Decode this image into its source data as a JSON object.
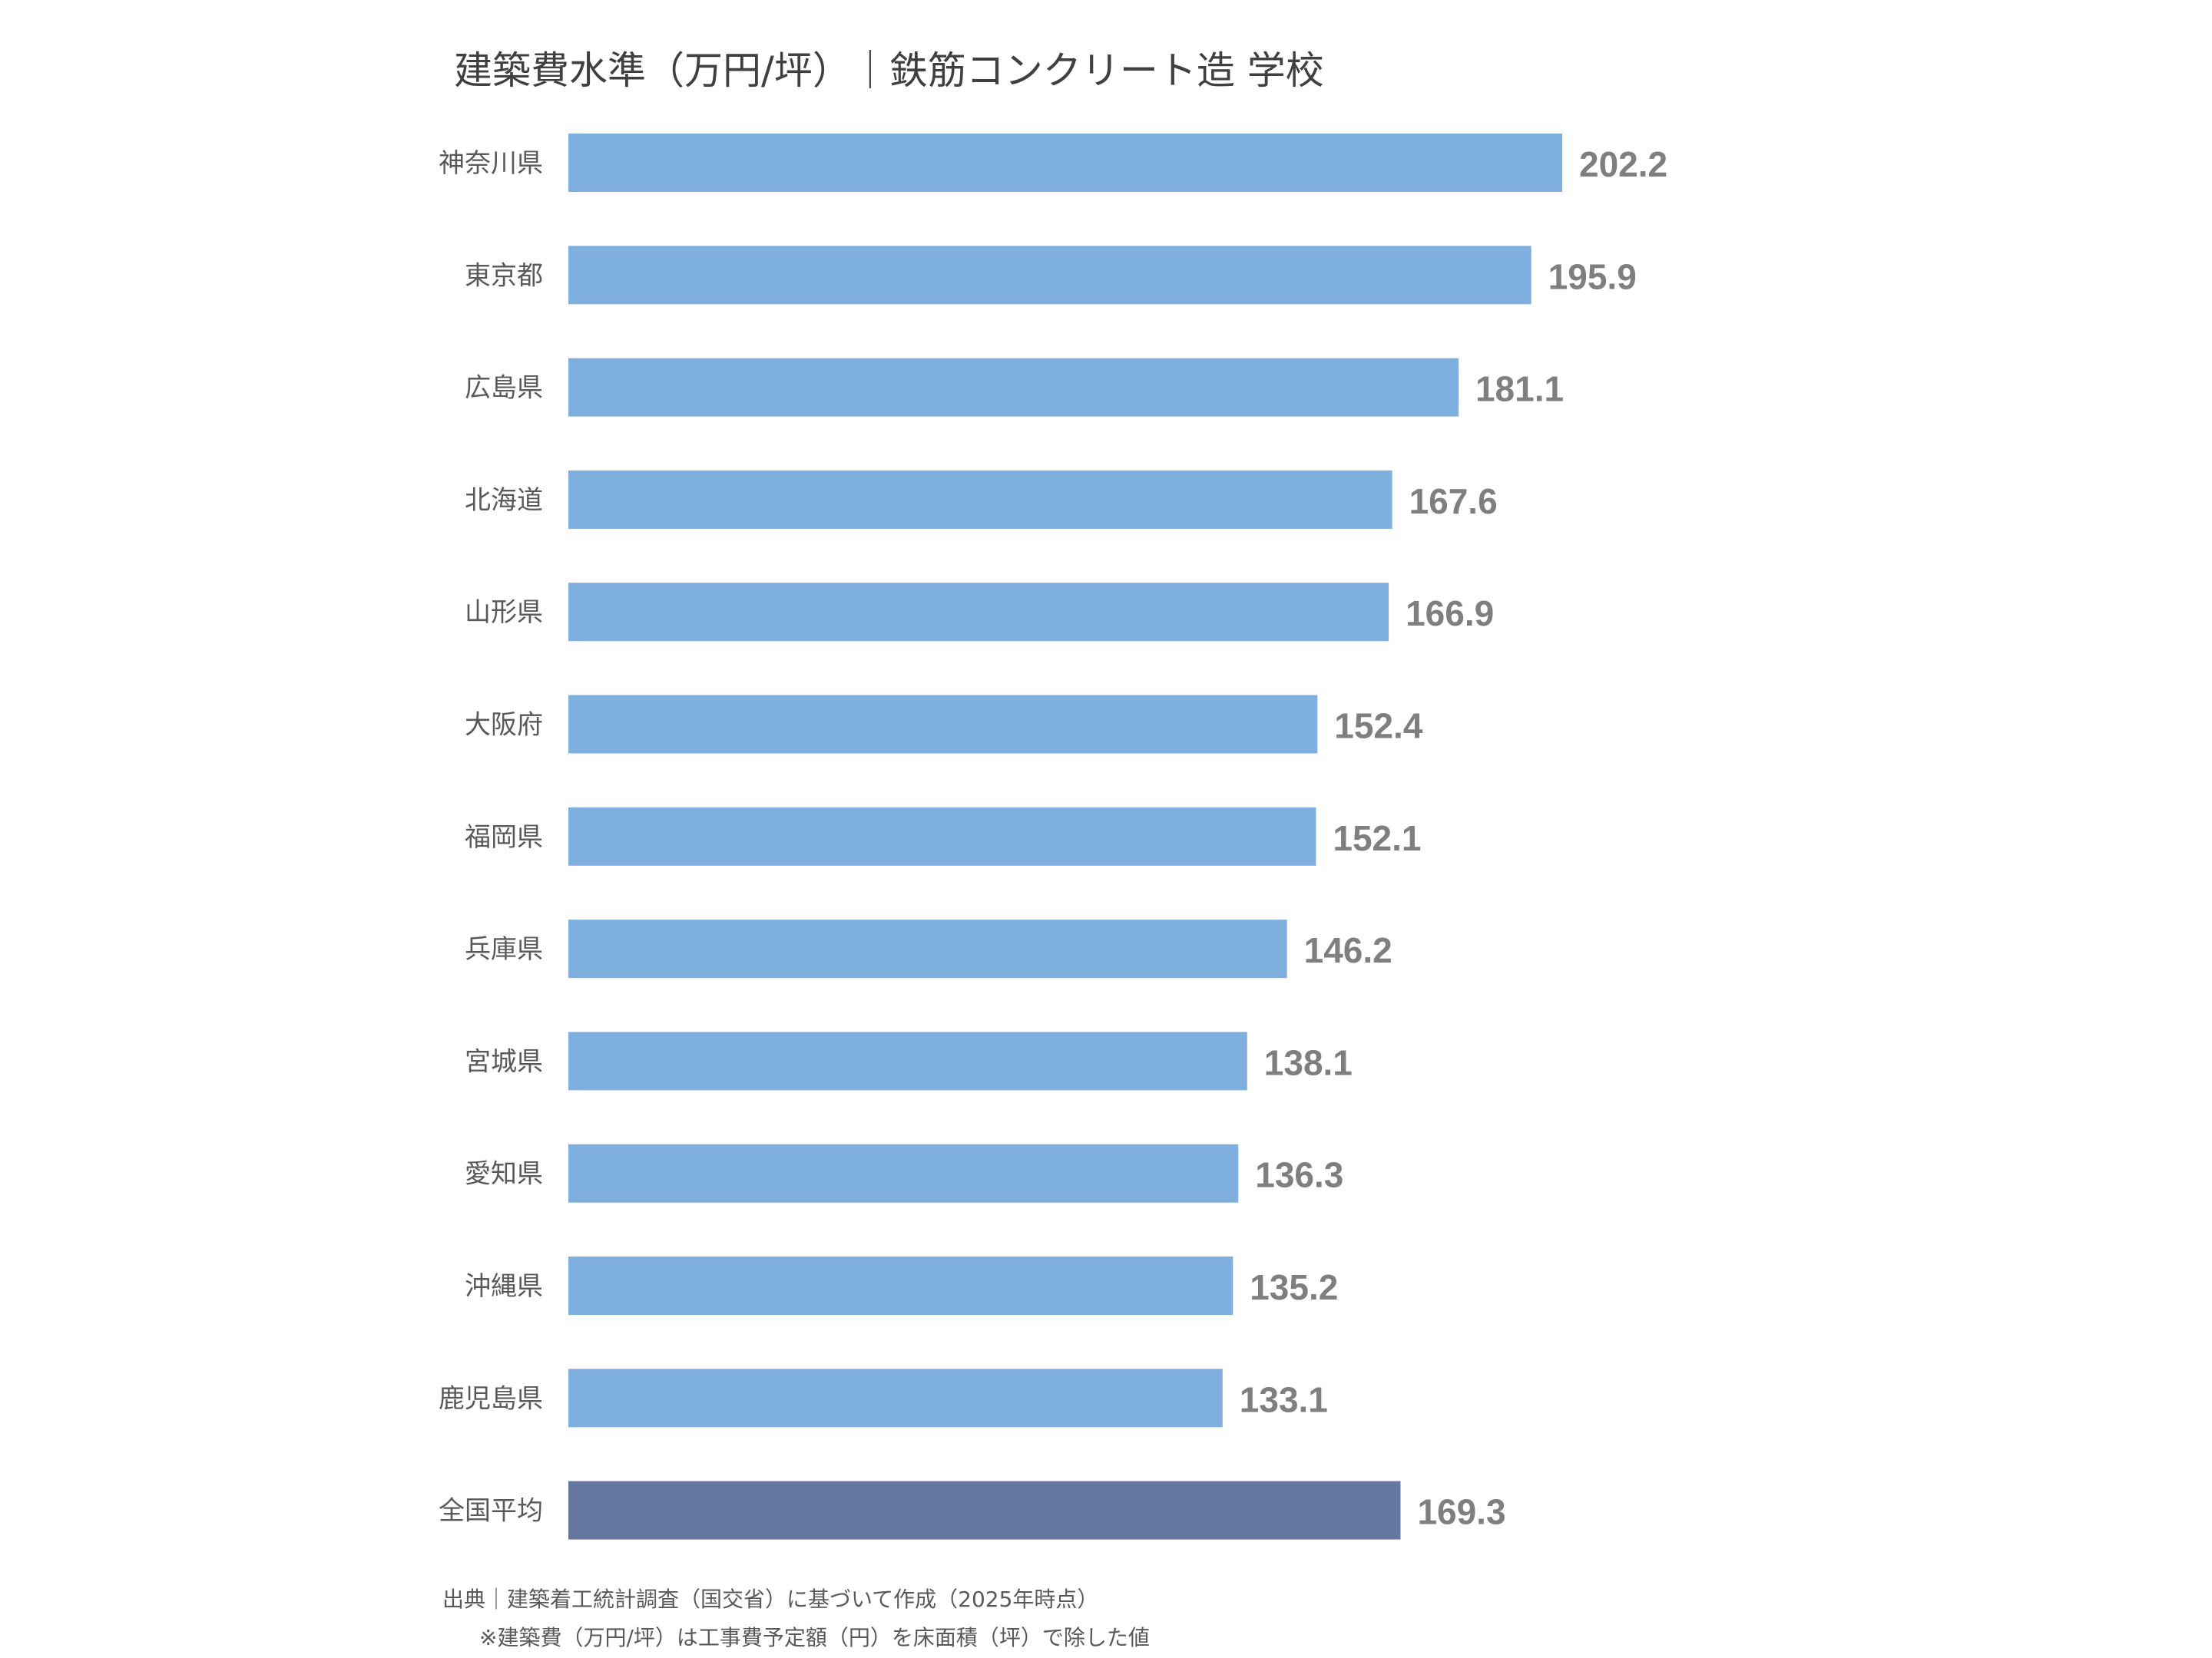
{
  "chart_data": {
    "type": "bar",
    "orientation": "horizontal",
    "title": "建築費水準（万円/坪）｜鉄筋コンクリート造 学校",
    "categories": [
      "神奈川県",
      "東京都",
      "広島県",
      "北海道",
      "山形県",
      "大阪府",
      "福岡県",
      "兵庫県",
      "宮城県",
      "愛知県",
      "沖縄県",
      "鹿児島県",
      "全国平均"
    ],
    "values": [
      202.2,
      195.9,
      181.1,
      167.6,
      166.9,
      152.4,
      152.1,
      146.2,
      138.1,
      136.3,
      135.2,
      133.1,
      169.3
    ],
    "xlim": [
      0,
      202.2
    ],
    "grid": false,
    "data_labels": true,
    "colors": {
      "bar": "#7EAFDE",
      "highlight": "#65779F",
      "highlight_category": "全国平均",
      "value_label": "#7F7F7F",
      "category_label": "#595959"
    }
  },
  "footnotes": {
    "source": "出典｜建築着工統計調査（国交省）に基づいて作成（2025年時点）",
    "note": "※建築費（万円/坪）は工事費予定額（円）を床面積（坪）で除した値"
  }
}
